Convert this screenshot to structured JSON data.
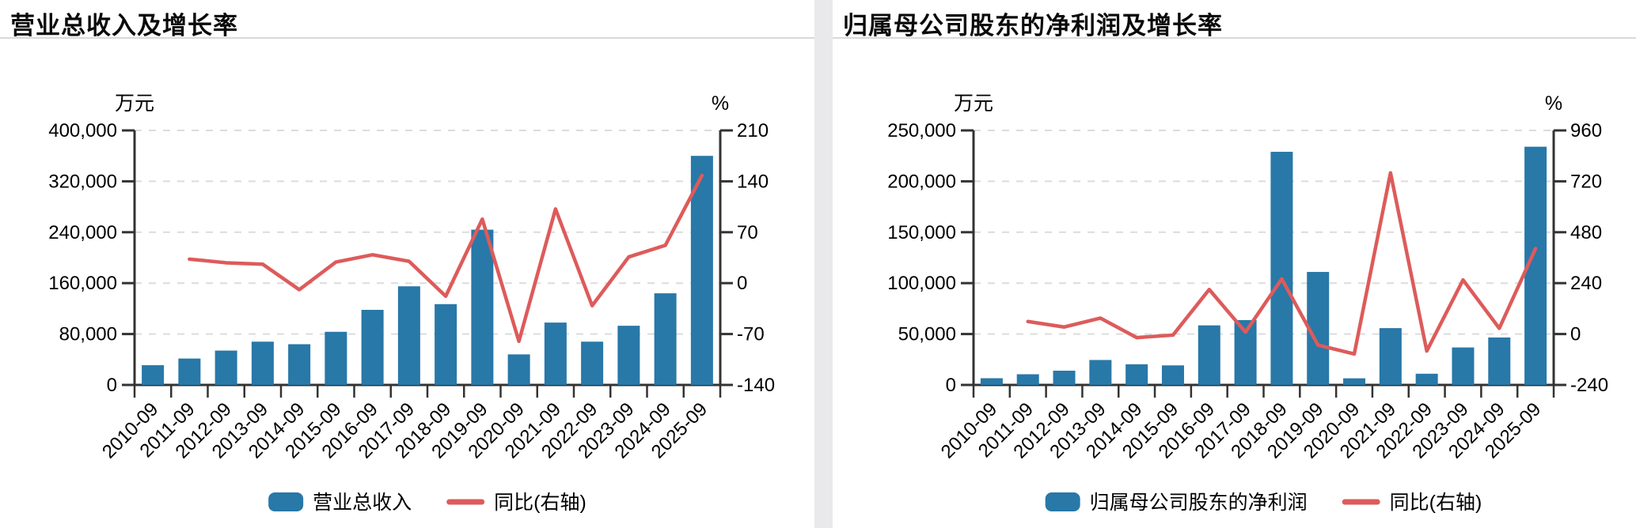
{
  "page": {
    "background": "#e9e9eb",
    "panel_background": "#ffffff"
  },
  "colors": {
    "bar": "#2878a8",
    "line": "#dd5b5b",
    "grid": "#dcdcdc",
    "axis": "#333333",
    "divider": "#d9d9d9",
    "label": "#000000"
  },
  "chart_data": [
    {
      "type": "bar+line",
      "title": "营业总收入及增长率",
      "categories": [
        "2010-09",
        "2011-09",
        "2012-09",
        "2013-09",
        "2014-09",
        "2015-09",
        "2016-09",
        "2017-09",
        "2018-09",
        "2019-09",
        "2020-09",
        "2021-09",
        "2022-09",
        "2023-09",
        "2024-09",
        "2025-09"
      ],
      "series": [
        {
          "name": "营业总收入",
          "type": "bar",
          "axis": "left",
          "unit": "万元",
          "values": [
            31000,
            41500,
            54000,
            68000,
            64000,
            83500,
            118000,
            155000,
            127000,
            244000,
            48000,
            98000,
            68000,
            93000,
            144000,
            360000
          ]
        },
        {
          "name": "同比(右轴)",
          "type": "line",
          "axis": "right",
          "unit": "%",
          "values": [
            null,
            33,
            28,
            26,
            -9,
            29,
            39,
            30,
            -18,
            88,
            -80,
            102,
            -31,
            36,
            52,
            148
          ]
        }
      ],
      "left_axis": {
        "label": "万元",
        "min": 0,
        "max": 400000,
        "step": 80000,
        "ticks": [
          "0",
          "80,000",
          "160,000",
          "240,000",
          "320,000",
          "400,000"
        ]
      },
      "right_axis": {
        "label": "%",
        "min": -140,
        "max": 210,
        "step": 70,
        "ticks": [
          "-140",
          "-70",
          "0",
          "70",
          "140",
          "210"
        ]
      },
      "legend_position": "bottom",
      "grid": true
    },
    {
      "type": "bar+line",
      "title": "归属母公司股东的净利润及增长率",
      "categories": [
        "2010-09",
        "2011-09",
        "2012-09",
        "2013-09",
        "2014-09",
        "2015-09",
        "2016-09",
        "2017-09",
        "2018-09",
        "2019-09",
        "2020-09",
        "2021-09",
        "2022-09",
        "2023-09",
        "2024-09",
        "2025-09"
      ],
      "series": [
        {
          "name": "归属母公司股东的净利润",
          "type": "bar",
          "axis": "left",
          "unit": "万元",
          "values": [
            6600,
            10500,
            14000,
            24500,
            20300,
            19200,
            58500,
            63700,
            229000,
            111000,
            6500,
            55800,
            11000,
            36800,
            46600,
            234000
          ]
        },
        {
          "name": "同比(右轴)",
          "type": "line",
          "axis": "right",
          "unit": "%",
          "values": [
            null,
            59,
            33,
            75,
            -17,
            -5,
            210,
            9,
            260,
            -52,
            -94,
            760,
            -80,
            255,
            27,
            403
          ]
        }
      ],
      "left_axis": {
        "label": "万元",
        "min": 0,
        "max": 250000,
        "step": 50000,
        "ticks": [
          "0",
          "50,000",
          "100,000",
          "150,000",
          "200,000",
          "250,000"
        ]
      },
      "right_axis": {
        "label": "%",
        "min": -240,
        "max": 960,
        "step": 240,
        "ticks": [
          "-240",
          "0",
          "240",
          "480",
          "720",
          "960"
        ]
      },
      "legend_position": "bottom",
      "grid": true
    }
  ]
}
